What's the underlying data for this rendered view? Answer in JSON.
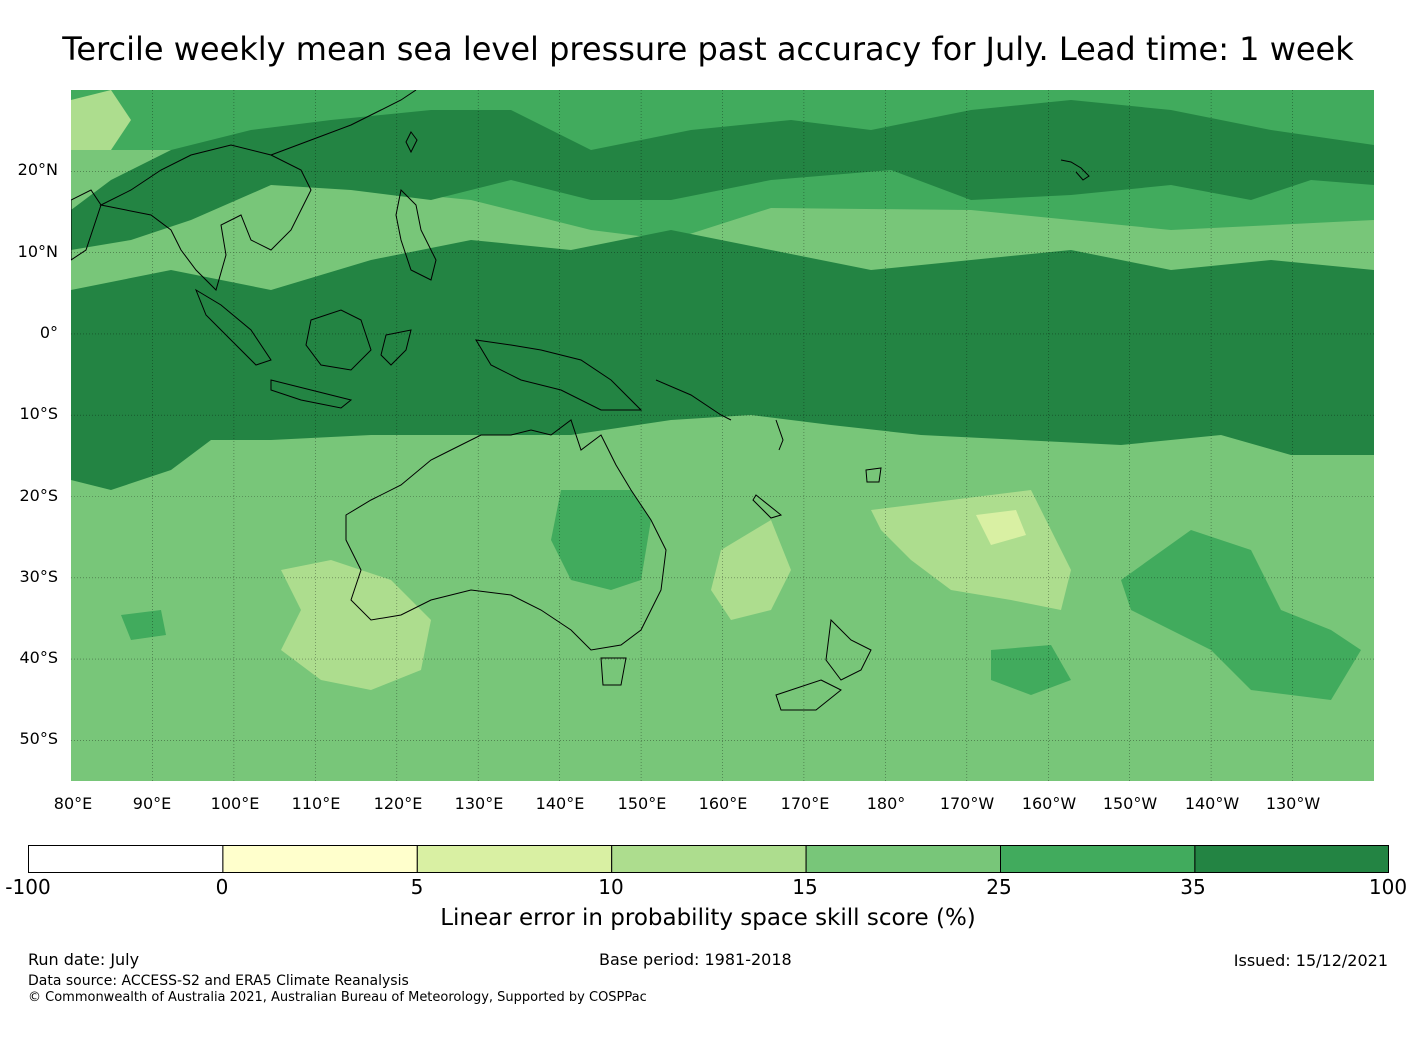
{
  "title": "Tercile weekly mean sea level pressure past accuracy for July. Lead time: 1 week",
  "map": {
    "lon_range": [
      80,
      240
    ],
    "lat_range": [
      -55,
      30
    ],
    "lat_ticks": [
      {
        "value": 20,
        "label": "20°N"
      },
      {
        "value": 10,
        "label": "10°N"
      },
      {
        "value": 0,
        "label": "0°"
      },
      {
        "value": -10,
        "label": "10°S"
      },
      {
        "value": -20,
        "label": "20°S"
      },
      {
        "value": -30,
        "label": "30°S"
      },
      {
        "value": -40,
        "label": "40°S"
      },
      {
        "value": -50,
        "label": "50°S"
      }
    ],
    "lon_ticks": [
      {
        "value": 80,
        "label": "80°E"
      },
      {
        "value": 90,
        "label": "90°E"
      },
      {
        "value": 100,
        "label": "100°E"
      },
      {
        "value": 110,
        "label": "110°E"
      },
      {
        "value": 120,
        "label": "120°E"
      },
      {
        "value": 130,
        "label": "130°E"
      },
      {
        "value": 140,
        "label": "140°E"
      },
      {
        "value": 150,
        "label": "150°E"
      },
      {
        "value": 160,
        "label": "160°E"
      },
      {
        "value": 170,
        "label": "170°E"
      },
      {
        "value": 180,
        "label": "180°"
      },
      {
        "value": 190,
        "label": "170°W"
      },
      {
        "value": 200,
        "label": "160°W"
      },
      {
        "value": 210,
        "label": "150°W"
      },
      {
        "value": 220,
        "label": "140°W"
      },
      {
        "value": 230,
        "label": "130°W"
      }
    ],
    "grid": true
  },
  "colorbar": {
    "boundaries": [
      "-100",
      "0",
      "5",
      "10",
      "15",
      "25",
      "35",
      "100"
    ],
    "colors": [
      "#ffffff",
      "#ffffcc",
      "#d9f0a3",
      "#addd8e",
      "#78c679",
      "#41ab5d",
      "#238443"
    ],
    "title": "Linear error in probability space skill score (%)"
  },
  "footer": {
    "run_date": "Run date: July",
    "base_period": "Base period: 1981-2018",
    "issued": "Issued: 15/12/2021",
    "data_source": "Data source: ACCESS-S2 and ERA5 Climate Reanalysis",
    "copyright": "© Commonwealth of Australia 2021, Australian Bureau of Meteorology, Supported by COSPPac"
  }
}
